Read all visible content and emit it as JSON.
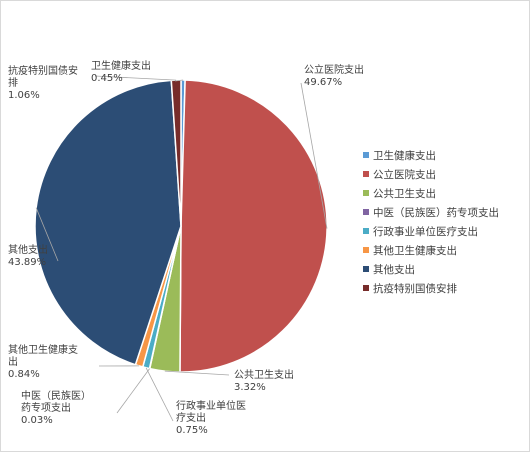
{
  "chart_data": {
    "type": "pie",
    "title": "",
    "legend_position": "right",
    "slices": [
      {
        "label": "卫生健康支出",
        "value": 0.45,
        "value_label": "0.45%",
        "color": "#5b9bd5",
        "label_lines": [
          "卫生健康支出"
        ]
      },
      {
        "label": "公立医院支出",
        "value": 49.67,
        "value_label": "49.67%",
        "color": "#c0504d",
        "label_lines": [
          "公立医院支出"
        ]
      },
      {
        "label": "公共卫生支出",
        "value": 3.32,
        "value_label": "3.32%",
        "color": "#9bbb59",
        "label_lines": [
          "公共卫生支出"
        ]
      },
      {
        "label": "中医（民族医）药专项支出",
        "value": 0.03,
        "value_label": "0.03%",
        "color": "#8064a2",
        "label_lines": [
          "中医（民族医）",
          "药专项支出"
        ]
      },
      {
        "label": "行政事业单位医疗支出",
        "value": 0.75,
        "value_label": "0.75%",
        "color": "#4bacc6",
        "label_lines": [
          "行政事业单位医",
          "疗支出"
        ]
      },
      {
        "label": "其他卫生健康支出",
        "value": 0.84,
        "value_label": "0.84%",
        "color": "#f79646",
        "label_lines": [
          "其他卫生健康支",
          "出"
        ]
      },
      {
        "label": "其他支出",
        "value": 43.89,
        "value_label": "43.89%",
        "color": "#2c4d75",
        "label_lines": [
          "其他支出"
        ]
      },
      {
        "label": "抗疫特别国债安排",
        "value": 1.06,
        "value_label": "1.06%",
        "color": "#772c2a",
        "label_lines": [
          "抗疫特别国债安",
          "排"
        ]
      }
    ]
  }
}
